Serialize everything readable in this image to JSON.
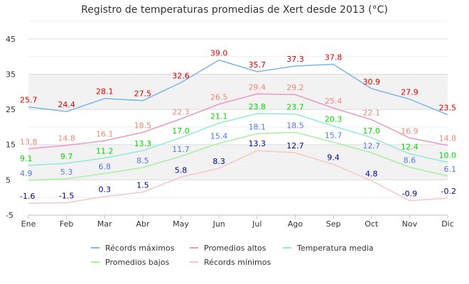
{
  "chart_data": {
    "type": "line",
    "title": "Registro de temperaturas promedias de Xert desde 2013 (°C)",
    "categories": [
      "Ene",
      "Feb",
      "Mar",
      "Abr",
      "May",
      "Jun",
      "Jul",
      "Ago",
      "Sep",
      "Oct",
      "Nov",
      "Dic"
    ],
    "ylim": [
      -5,
      50
    ],
    "yticks": [
      -5,
      5,
      15,
      25,
      35,
      45
    ],
    "ytick_labels": [
      "-5",
      "5",
      "15",
      "25",
      "35",
      "45"
    ],
    "bands": [
      [
        5,
        15
      ],
      [
        25,
        35
      ]
    ],
    "series": [
      {
        "name": "Récords máximos",
        "color": "#7cb5ec",
        "label_color": "#dd0000",
        "values": [
          25.7,
          24.4,
          28.1,
          27.5,
          32.6,
          39.0,
          35.7,
          37.3,
          37.8,
          30.9,
          27.9,
          23.5
        ],
        "labels": [
          "25.7",
          "24.4",
          "28.1",
          "27.5",
          "32.6",
          "39.0",
          "35.7",
          "37.3",
          "37.8",
          "30.9",
          "27.9",
          "23.5"
        ]
      },
      {
        "name": "Promedios altos",
        "color": "#e89ac6",
        "label_color": "#ee8877",
        "values": [
          13.8,
          14.8,
          16.1,
          18.5,
          22.3,
          26.5,
          29.4,
          29.2,
          25.4,
          22.1,
          16.9,
          14.8
        ],
        "labels": [
          "13.8",
          "14.8",
          "16.1",
          "18.5",
          "22.3",
          "26.5",
          "29.4",
          "29.2",
          "25.4",
          "22.1",
          "16.9",
          "14.8"
        ]
      },
      {
        "name": "Temperatura media",
        "color": "#90ead5",
        "label_color": "#00dd00",
        "values": [
          9.1,
          9.7,
          11.2,
          13.3,
          17.0,
          21.1,
          23.8,
          23.7,
          20.3,
          17.0,
          12.4,
          10.0
        ],
        "labels": [
          "9.1",
          "9.7",
          "11.2",
          "13.3",
          "17.0",
          "21.1",
          "23.8",
          "23.7",
          "20.3",
          "17.0",
          "12.4",
          "10.0"
        ]
      },
      {
        "name": "Promedios bajos",
        "color": "#a8f0a0",
        "label_color": "#5577ee",
        "values": [
          4.9,
          5.3,
          6.8,
          8.5,
          11.7,
          15.4,
          18.1,
          18.5,
          15.7,
          12.7,
          8.6,
          6.1
        ],
        "labels": [
          "4.9",
          "5.3",
          "6.8",
          "8.5",
          "11.7",
          "15.4",
          "18.1",
          "18.5",
          "15.7",
          "12.7",
          "8.6",
          "6.1"
        ]
      },
      {
        "name": "Récords mínimos",
        "color": "#f4c8c8",
        "label_color": "#0000aa",
        "values": [
          -1.6,
          -1.5,
          0.3,
          1.5,
          5.8,
          8.3,
          13.3,
          12.7,
          9.4,
          4.8,
          -0.9,
          -0.2
        ],
        "labels": [
          "-1.6",
          "-1.5",
          "0.3",
          "1.5",
          "5.8",
          "8.3",
          "13.3",
          "12.7",
          "9.4",
          "4.8",
          "-0.9",
          "-0.2"
        ]
      }
    ],
    "legend_position": "bottom"
  }
}
